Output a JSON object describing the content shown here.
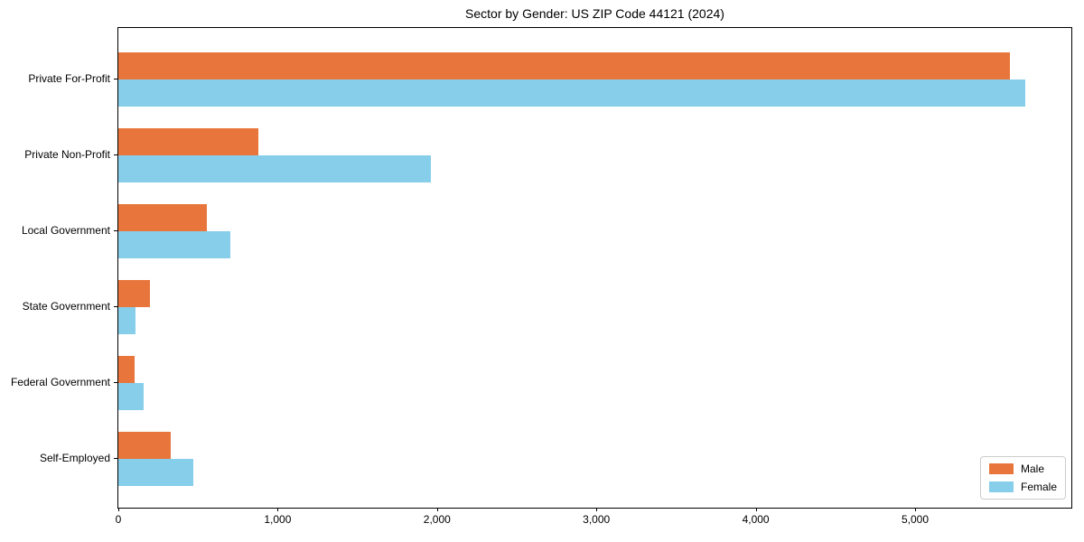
{
  "chart_data": {
    "type": "bar",
    "orientation": "horizontal",
    "title": "Sector by Gender: US ZIP Code 44121 (2024)",
    "categories": [
      "Private For-Profit",
      "Private Non-Profit",
      "Local Government",
      "State Government",
      "Federal Government",
      "Self-Employed"
    ],
    "series": [
      {
        "name": "Male",
        "color": "#E8763C",
        "values": [
          5595,
          880,
          555,
          200,
          100,
          330
        ]
      },
      {
        "name": "Female",
        "color": "#87CEEB",
        "values": [
          5690,
          1960,
          700,
          110,
          160,
          470
        ]
      }
    ],
    "xlabel": "",
    "ylabel": "",
    "xlim": [
      0,
      5975
    ],
    "xticks": [
      0,
      1000,
      2000,
      3000,
      4000,
      5000
    ],
    "xtick_labels": [
      "0",
      "1,000",
      "2,000",
      "3,000",
      "4,000",
      "5,000"
    ],
    "legend_position": "lower right",
    "grid": false,
    "background_color": "#ffffff",
    "frame_color": "#000000"
  }
}
